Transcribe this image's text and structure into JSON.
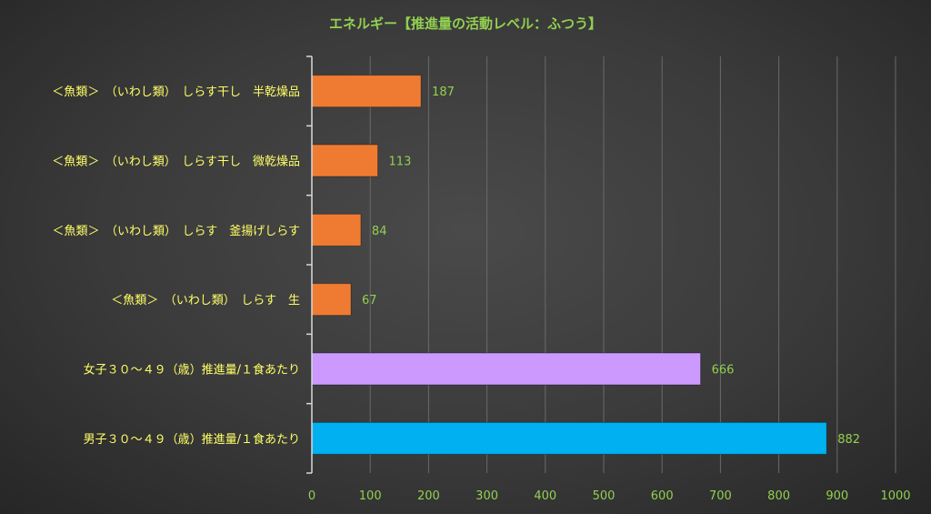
{
  "chart_data": {
    "type": "bar",
    "orientation": "horizontal",
    "title": "エネルギー【推進量の活動レベル：ふつう】",
    "categories": [
      "＜魚類＞　（いわし類）　しらす干し　半乾燥品",
      "＜魚類＞　（いわし類）　しらす干し　微乾燥品",
      "＜魚類＞　（いわし類）　しらす　釜揚げしらす",
      "＜魚類＞　（いわし類）　しらす　生",
      "女子３０～４９（歳）推進量/１食あたり",
      "男子３０～４９（歳）推進量/１食あたり"
    ],
    "values": [
      187,
      113,
      84,
      67,
      666,
      882
    ],
    "value_labels": [
      "187",
      "113",
      "84",
      "67",
      "666",
      "882"
    ],
    "bar_colors": [
      "#ef7b33",
      "#ef7b33",
      "#ef7b33",
      "#ef7b33",
      "#cc99ff",
      "#00b0f0"
    ],
    "xlim": [
      0,
      1000
    ],
    "xticks": [
      "0",
      "100",
      "200",
      "300",
      "400",
      "500",
      "600",
      "700",
      "800",
      "900",
      "1000"
    ],
    "grid": true,
    "legend": "none",
    "colors": {
      "title": "#92d050",
      "category_label": "#ffff66",
      "tick_label": "#92d050",
      "value_label": "#92d050",
      "gridline": "#6a6a6a",
      "axis": "#d9d9d9"
    }
  }
}
